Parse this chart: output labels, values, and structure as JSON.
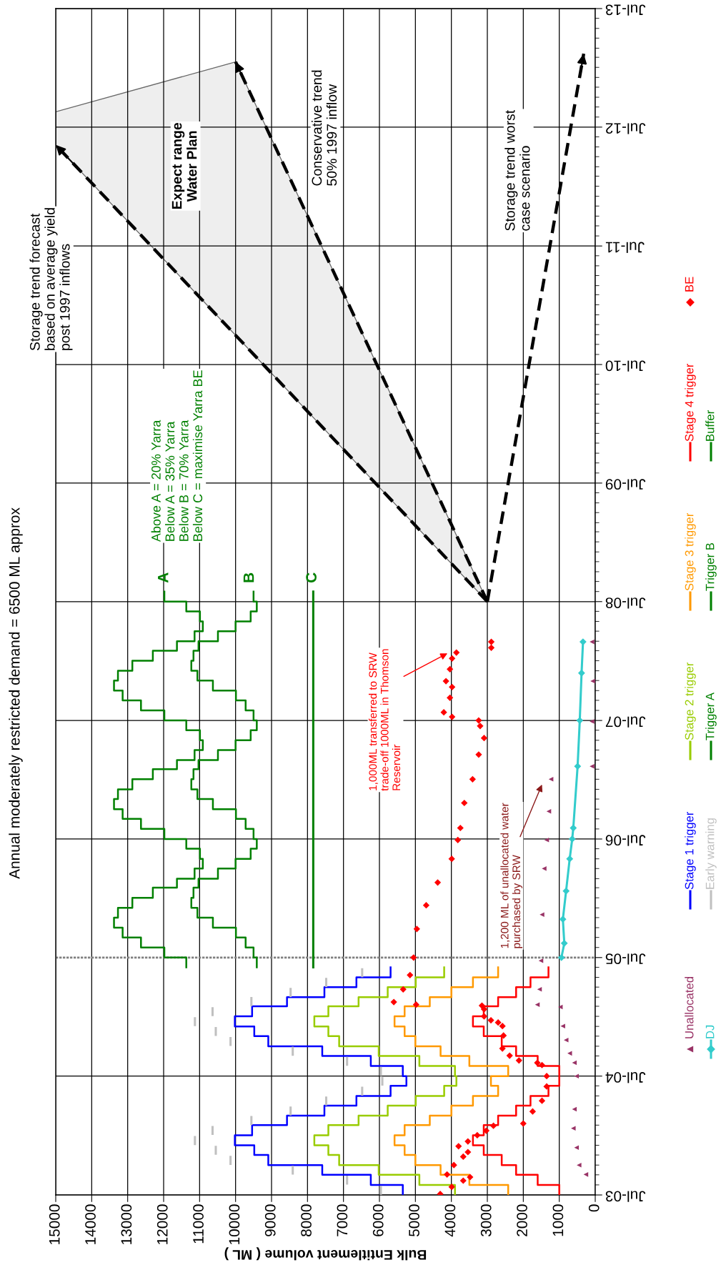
{
  "chart_data": {
    "type": "line",
    "orientation": "horizontal",
    "title": "Annual moderately restricted demand = 6500 ML approx",
    "xlabel": "Bulk Entitlement volume ( ML )",
    "xlim": [
      15000,
      0
    ],
    "xticks": [
      0,
      1000,
      2000,
      3000,
      4000,
      5000,
      6000,
      7000,
      8000,
      9000,
      10000,
      11000,
      12000,
      13000,
      14000,
      15000
    ],
    "ylim": [
      "2003-07-01",
      "2013-07-01"
    ],
    "yticks": [
      {
        "value": "2003-07-01",
        "label": "Jul-03"
      },
      {
        "value": "2004-07-01",
        "label": "Jul-04"
      },
      {
        "value": "2005-07-01",
        "label": "Jul-05"
      },
      {
        "value": "2006-07-01",
        "label": "Jul-06"
      },
      {
        "value": "2007-07-01",
        "label": "Jul-07"
      },
      {
        "value": "2008-07-01",
        "label": "Jul-08"
      },
      {
        "value": "2009-07-01",
        "label": "Jul-09"
      },
      {
        "value": "2010-07-01",
        "label": "Jul-10"
      },
      {
        "value": "2011-07-01",
        "label": "Jul-11"
      },
      {
        "value": "2012-07-01",
        "label": "Jul-12"
      },
      {
        "value": "2013-07-01",
        "label": "Jul-13"
      }
    ],
    "grid": true,
    "legend": "bottom",
    "series": [
      {
        "name": "Unallocated",
        "type": "scatter",
        "marker": "triangle",
        "color": "#993366",
        "x": [
          "2003-09-02",
          "2003-10-01",
          "2003-11-24",
          "2004-01-22",
          "2004-03-21",
          "2004-07-01",
          "2004-08-11",
          "2004-09-09",
          "2004-10-20",
          "2004-12-02",
          "2005-01-30",
          "2005-02-06",
          "2005-03-25",
          "2005-06-21",
          "2005-11-10",
          "2006-04-01",
          "2006-06-28",
          "2006-09-24",
          "2007-01-01",
          "2007-02-10",
          "2007-06-28",
          "2007-10-30",
          "2008-02-28"
        ],
        "values": [
          260,
          450,
          520,
          610,
          580,
          520,
          580,
          710,
          810,
          900,
          970,
          1610,
          1550,
          1510,
          1480,
          1420,
          1350,
          1290,
          1230,
          90,
          90,
          70,
          90
        ]
      },
      {
        "name": "DJ",
        "marker": "diamond",
        "color": "#33cccc",
        "x": [
          "2005-07-01",
          "2005-08-14",
          "2005-10-27",
          "2006-01-22",
          "2006-05-01",
          "2006-07-01",
          "2006-08-04",
          "2007-02-10",
          "2007-07-01",
          "2007-11-24",
          "2008-02-28"
        ],
        "values": [
          940,
          860,
          900,
          810,
          710,
          640,
          610,
          490,
          430,
          380,
          340
        ]
      },
      {
        "name": "Stage 1 trigger",
        "type": "step",
        "color": "#0000ff",
        "x": [
          "2003-07",
          "2003-08",
          "2003-09",
          "2003-10",
          "2003-11",
          "2003-12",
          "2004-01",
          "2004-02",
          "2004-03",
          "2004-04",
          "2004-05",
          "2004-06",
          "2004-07",
          "2004-08",
          "2004-09",
          "2004-10",
          "2004-11",
          "2004-12",
          "2005-01",
          "2005-02",
          "2005-03",
          "2005-04",
          "2005-05",
          "2005-06"
        ],
        "values": [
          5350,
          6240,
          7590,
          9090,
          9480,
          10020,
          9540,
          8570,
          7530,
          6640,
          5690,
          5250,
          5350,
          6240,
          7590,
          9090,
          9480,
          10020,
          9540,
          8570,
          7530,
          6640,
          5690,
          5690
        ]
      },
      {
        "name": "Early warning",
        "color": "#c0c0c0",
        "x": [
          "2003-07-05",
          "2003-07-26",
          null,
          "2003-08-05",
          "2003-08-26",
          null,
          "2003-09-05",
          "2003-09-26",
          null,
          "2003-10-05",
          "2003-10-26",
          null,
          "2003-11-05",
          "2003-11-26",
          null,
          "2003-12-05",
          "2003-12-26",
          null,
          "2004-01-05",
          "2004-01-26",
          null,
          "2004-02-05",
          "2004-02-26",
          null,
          "2004-03-05",
          "2004-03-26",
          null,
          "2004-04-05",
          "2004-04-26",
          null,
          "2004-05-05",
          "2004-05-26",
          null,
          "2004-06-05",
          "2004-06-26",
          null,
          "2004-07-05",
          "2004-07-26",
          null,
          "2004-08-05",
          "2004-08-26",
          null,
          "2004-09-05",
          "2004-09-26",
          null,
          "2004-10-05",
          "2004-10-26",
          null,
          "2004-11-05",
          "2004-11-26",
          null,
          "2004-12-05",
          "2004-12-26",
          null,
          "2005-01-05",
          "2005-01-26",
          null,
          "2005-02-05",
          "2005-02-26",
          null,
          "2005-03-05",
          "2005-03-26",
          null,
          "2005-04-05",
          "2005-04-26",
          null,
          "2005-05-05",
          "2005-05-26"
        ],
        "values": [
          5960,
          5960,
          null,
          6900,
          6900,
          null,
          8410,
          8410,
          null,
          10140,
          10140,
          null,
          10550,
          10550,
          null,
          11130,
          11130,
          null,
          10640,
          10640,
          null,
          9560,
          9560,
          null,
          8470,
          8470,
          null,
          7480,
          7480,
          null,
          6480,
          6480,
          null,
          5920,
          5920,
          null,
          5960,
          5960,
          null,
          6900,
          6900,
          null,
          8410,
          8410,
          null,
          10140,
          10140,
          null,
          10550,
          10550,
          null,
          11130,
          11130,
          null,
          10640,
          10640,
          null,
          9560,
          9560,
          null,
          8470,
          8470,
          null,
          7480,
          7480,
          null,
          6480,
          6480
        ]
      },
      {
        "name": "Stage 2 trigger",
        "type": "step",
        "color": "#99cc00",
        "x": [
          "2003-07",
          "2003-08",
          "2003-09",
          "2003-10",
          "2003-11",
          "2003-12",
          "2004-01",
          "2004-02",
          "2004-03",
          "2004-04",
          "2004-05",
          "2004-06",
          "2004-07",
          "2004-08",
          "2004-09",
          "2004-10",
          "2004-11",
          "2004-12",
          "2005-01",
          "2005-02",
          "2005-03",
          "2005-04",
          "2005-05",
          "2005-06"
        ],
        "values": [
          3900,
          4890,
          6020,
          7120,
          7420,
          7810,
          7420,
          6580,
          5770,
          4990,
          4200,
          3860,
          3900,
          4890,
          6020,
          7120,
          7420,
          7810,
          7420,
          6580,
          5770,
          4990,
          4200,
          4200
        ]
      },
      {
        "name": "Trigger A",
        "type": "step",
        "color": "#008000",
        "x": [
          "2005-06",
          "2005-07",
          "2005-08",
          "2005-09",
          "2005-10",
          "2005-11",
          "2005-12",
          "2006-01",
          "2006-02",
          "2006-03",
          "2006-04",
          "2006-05",
          "2006-06",
          "2006-07",
          "2006-08",
          "2006-09",
          "2006-10",
          "2006-11",
          "2006-12",
          "2007-01",
          "2007-02",
          "2007-03",
          "2007-04",
          "2007-05",
          "2007-06",
          "2007-07",
          "2007-08",
          "2007-09",
          "2007-10",
          "2007-11",
          "2007-12",
          "2008-01",
          "2008-02",
          "2008-03",
          "2008-04",
          "2008-05",
          "2008-06",
          "2008-07",
          "2008-08"
        ],
        "values": [
          11370,
          11980,
          12630,
          13140,
          13380,
          13270,
          12870,
          12300,
          11630,
          11140,
          10910,
          10990,
          11370,
          11980,
          12630,
          13140,
          13380,
          13270,
          12870,
          12300,
          11630,
          11140,
          10910,
          10990,
          11370,
          11980,
          12630,
          13140,
          13380,
          13270,
          12870,
          12300,
          11630,
          11140,
          10910,
          10990,
          11370,
          11980,
          11980
        ]
      },
      {
        "name": "Stage 3 trigger",
        "type": "step",
        "color": "#ff9900",
        "x": [
          "2003-07",
          "2003-08",
          "2003-09",
          "2003-10",
          "2003-11",
          "2003-12",
          "2004-01",
          "2004-02",
          "2004-03",
          "2004-04",
          "2004-05",
          "2004-06",
          "2004-07",
          "2004-08",
          "2004-09",
          "2004-10",
          "2004-11",
          "2004-12",
          "2005-01",
          "2005-02",
          "2005-03",
          "2005-04",
          "2005-05",
          "2005-06"
        ],
        "values": [
          2420,
          3500,
          4300,
          5000,
          5300,
          5580,
          5300,
          4600,
          4000,
          3400,
          2700,
          2900,
          2420,
          3500,
          4300,
          5000,
          5300,
          5580,
          5300,
          4600,
          4000,
          3400,
          2700,
          2700
        ]
      },
      {
        "name": "Trigger B",
        "type": "step",
        "color": "#008000",
        "x": [
          "2005-06",
          "2005-07",
          "2005-08",
          "2005-09",
          "2005-10",
          "2005-11",
          "2005-12",
          "2006-01",
          "2006-02",
          "2006-03",
          "2006-04",
          "2006-05",
          "2006-06",
          "2006-07",
          "2006-08",
          "2006-09",
          "2006-10",
          "2006-11",
          "2006-12",
          "2007-01",
          "2007-02",
          "2007-03",
          "2007-04",
          "2007-05",
          "2007-06",
          "2007-07",
          "2007-08",
          "2007-09",
          "2007-10",
          "2007-11",
          "2007-12",
          "2008-01",
          "2008-02",
          "2008-03",
          "2008-04",
          "2008-05",
          "2008-06",
          "2008-07",
          "2008-08"
        ],
        "values": [
          9410,
          9500,
          9720,
          9990,
          10630,
          11060,
          11230,
          11170,
          11030,
          10490,
          10000,
          9580,
          9410,
          9500,
          9720,
          9990,
          10630,
          11060,
          11230,
          11170,
          11030,
          10490,
          10000,
          9580,
          9410,
          9500,
          9720,
          9990,
          10630,
          11060,
          11230,
          11170,
          11030,
          10490,
          10000,
          9580,
          9410,
          9500,
          9500
        ]
      },
      {
        "name": "Stage 4 trigger",
        "type": "step",
        "color": "#ff0000",
        "x": [
          "2003-07",
          "2003-08",
          "2003-09",
          "2003-10",
          "2003-11",
          "2003-12",
          "2004-01",
          "2004-02",
          "2004-03",
          "2004-04",
          "2004-05",
          "2004-06",
          "2004-07",
          "2004-08",
          "2004-09",
          "2004-10",
          "2004-11",
          "2004-12",
          "2005-01",
          "2005-02",
          "2005-03",
          "2005-04",
          "2005-05",
          "2005-06"
        ],
        "values": [
          1000,
          1600,
          2200,
          2600,
          3100,
          3400,
          3100,
          2700,
          2200,
          1800,
          1300,
          1000,
          1000,
          1600,
          2200,
          2600,
          3100,
          3400,
          3100,
          2700,
          2200,
          1800,
          1300,
          1300
        ]
      },
      {
        "name": "Buffer",
        "color": "#008000",
        "x": [
          "2005-06-01",
          "2008-08-01"
        ],
        "values": [
          7840,
          7840
        ]
      },
      {
        "name": "BE",
        "type": "scatter",
        "marker": "diamond",
        "color": "#ff0000",
        "x": [
          "2003-07-04",
          "2003-07-26",
          "2003-08-14",
          "2003-08-25",
          "2003-09-02",
          "2003-10-01",
          "2003-10-27",
          "2003-11-10",
          "2003-11-28",
          "2003-12-13",
          "2004-01-01",
          "2004-01-15",
          "2004-01-30",
          "2004-02-06",
          "2004-03-14",
          "2004-04-16",
          "2004-05-30",
          "2004-07-01",
          "2004-08-04",
          "2004-08-11",
          "2004-08-18",
          "2004-09-02",
          "2004-09-24",
          "2004-11-03",
          "2004-12-02",
          "2004-12-13",
          "2004-12-20",
          "2005-01-01",
          "2005-01-23",
          "2005-02-03",
          "2005-02-06",
          "2005-02-14",
          "2005-03-25",
          "2005-05-08",
          "2005-07-01",
          "2005-09-27",
          "2005-12-09",
          "2006-02-17",
          "2006-05-01",
          "2006-06-28",
          "2006-08-04",
          "2006-10-20",
          "2007-01-01",
          "2007-03-18",
          "2007-05-08",
          "2007-06-14",
          "2007-07-01",
          "2007-07-12",
          "2007-07-26",
          "2007-09-09",
          "2007-10-12",
          "2007-10-30",
          "2007-12-06",
          "2008-01-08",
          "2008-01-26",
          "2008-02-10",
          "2008-02-28"
        ],
        "values": [
          4310,
          3990,
          3670,
          3480,
          4120,
          3930,
          3670,
          3540,
          3800,
          3540,
          3280,
          3030,
          2830,
          2000,
          1740,
          1480,
          1350,
          1350,
          1480,
          1610,
          2120,
          2380,
          2580,
          2550,
          2580,
          2700,
          2900,
          3090,
          3090,
          3150,
          4980,
          5600,
          5340,
          5150,
          5050,
          4960,
          4700,
          4380,
          3990,
          3820,
          3750,
          3640,
          3410,
          3240,
          3090,
          3200,
          3240,
          3980,
          4210,
          4040,
          3980,
          4150,
          4040,
          3980,
          3860,
          2890,
          2890
        ]
      },
      {
        "line_style": "dashed",
        "color": "#000000",
        "x": [
          "2008-07-01",
          "2012-05-07"
        ],
        "values": [
          3000,
          15000
        ]
      },
      {
        "line_style": "dashed",
        "color": "#000000",
        "x": [
          "2008-07-01",
          "2012-05-07",
          "2012-08-17",
          "2013-01-18"
        ],
        "values": [
          3000,
          8920,
          9350,
          10000
        ],
        "lower": [
          3000,
          8920,
          9350,
          10000
        ],
        "upper": [
          3000,
          15000,
          15000,
          10000
        ]
      },
      {
        "line_style": "dashed",
        "color": "#000000",
        "x": [
          "2008-07-01",
          "2013-02-12"
        ],
        "values": [
          3000,
          320
        ]
      }
    ],
    "ref_lines": [
      {
        "axis": "y",
        "value": "2005-07-01",
        "color": "#808080",
        "line_style": "dotted"
      }
    ],
    "annotations": [
      "Above A = 20% Yarra\nBelow A = 35% Yarra\nBelow B = 70% Yarra\nBelow C = maximise Yarra BE",
      "A",
      "B",
      "C",
      "1,000ML transferred to SRW\ntrade-off 1000ML in Thomson\nReservoir",
      "1,200 ML of unallocated water\npurchased by SRW",
      "Storage trend forecast\nbased on average yield\npost 1997 inflows",
      "Conservative trend\n50% 1997 inflow",
      "Storage trend worst\ncase scenario",
      "Expect range\nWater Plan"
    ]
  }
}
